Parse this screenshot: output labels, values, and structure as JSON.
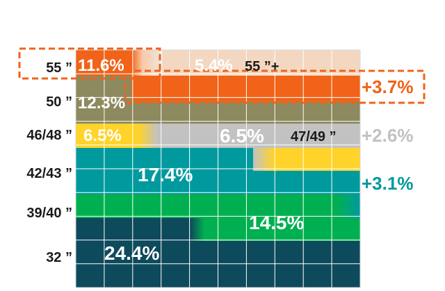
{
  "chart_data": {
    "type": "area",
    "title": "",
    "categories": [
      "32 ”",
      "39/40 ”",
      "42/43 ”",
      "46/48 ”",
      "50 ”",
      "55 ”"
    ],
    "series": [
      {
        "key": "s32",
        "label_left": "32 ”",
        "start": 24.4,
        "end": 24.4,
        "color": "#0d4a5c",
        "value_label": "24.4%"
      },
      {
        "key": "s39",
        "label_left": "39/40 ”",
        "start": 14.5,
        "end": 14.5,
        "color": "#00b050",
        "value_label": "14.5%"
      },
      {
        "key": "s42",
        "label_left": "42/43 ”",
        "start": 17.4,
        "end": 17.4,
        "color": "#009a9e",
        "value_label": "17.4%"
      },
      {
        "key": "s46",
        "label_left": "46/48 ”",
        "start": 6.5,
        "end": 6.5,
        "color": "#ffd32a",
        "value_label": "6.5%"
      },
      {
        "key": "s47",
        "label_right": "47/49 ”",
        "start": 0,
        "end": 6.5,
        "color": "#c2c2c2",
        "value_label": "6.5%"
      },
      {
        "key": "s50",
        "label_left": "50 ”",
        "start": 12.3,
        "end": 12.3,
        "color": "#8c8a5e",
        "value_label": "12.3%"
      },
      {
        "key": "s55",
        "label_left": "55 ”",
        "start": 11.6,
        "end": 11.6,
        "color": "#f06318",
        "value_label": "11.6%"
      },
      {
        "key": "s55p",
        "label_right": "55 ”+",
        "start": 0,
        "end": 5.4,
        "color": "#f9c9a8",
        "value_label": "5.4%"
      }
    ],
    "changes": [
      {
        "text": "+3.7%",
        "color": "#f06318",
        "row": "s55"
      },
      {
        "text": "+2.6%",
        "color": "#c2c2c2",
        "row": "s47"
      },
      {
        "text": "+3.1%",
        "color": "#009a9e",
        "row": "s42"
      }
    ],
    "grid": true,
    "ylim": [
      0,
      100
    ]
  }
}
